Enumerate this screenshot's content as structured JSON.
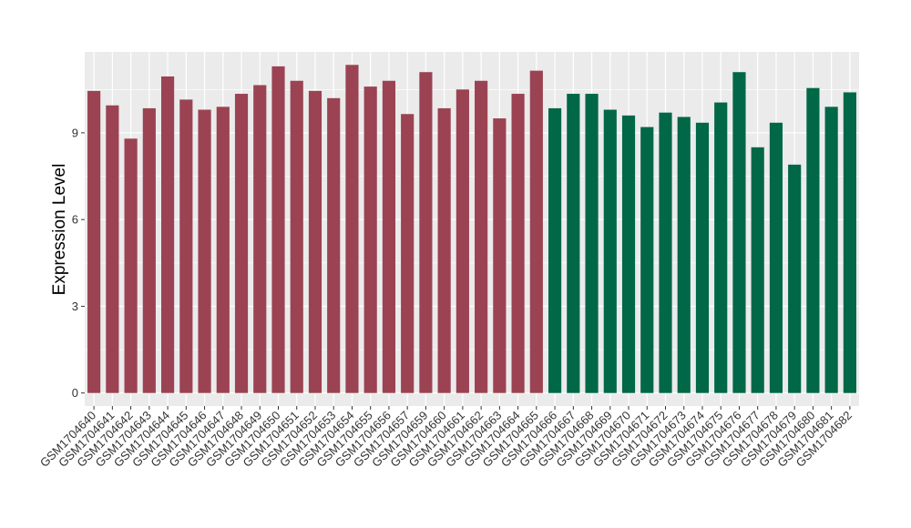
{
  "chart_data": {
    "type": "bar",
    "title": "",
    "xlabel": "",
    "ylabel": "Expression Level",
    "ylim": [
      -0.45,
      11.8
    ],
    "yticks": [
      0,
      3,
      6,
      9
    ],
    "grid": true,
    "legend": "none",
    "categories": [
      "GSM1704640",
      "GSM1704641",
      "GSM1704642",
      "GSM1704643",
      "GSM1704644",
      "GSM1704645",
      "GSM1704646",
      "GSM1704647",
      "GSM1704648",
      "GSM1704649",
      "GSM1704650",
      "GSM1704651",
      "GSM1704652",
      "GSM1704653",
      "GSM1704654",
      "GSM1704655",
      "GSM1704656",
      "GSM1704657",
      "GSM1704659",
      "GSM1704660",
      "GSM1704661",
      "GSM1704662",
      "GSM1704663",
      "GSM1704664",
      "GSM1704665",
      "GSM1704666",
      "GSM1704667",
      "GSM1704668",
      "GSM1704669",
      "GSM1704670",
      "GSM1704671",
      "GSM1704672",
      "GSM1704673",
      "GSM1704674",
      "GSM1704675",
      "GSM1704676",
      "GSM1704677",
      "GSM1704678",
      "GSM1704679",
      "GSM1704680",
      "GSM1704681",
      "GSM1704682"
    ],
    "values": [
      10.45,
      9.95,
      8.8,
      9.85,
      10.95,
      10.15,
      9.8,
      9.9,
      10.35,
      10.65,
      11.3,
      10.8,
      10.45,
      10.2,
      11.35,
      10.6,
      10.8,
      9.65,
      11.1,
      9.85,
      10.5,
      10.8,
      9.5,
      10.35,
      11.15,
      9.85,
      10.35,
      10.35,
      9.8,
      9.6,
      9.2,
      9.7,
      9.55,
      9.35,
      10.05,
      11.1,
      8.5,
      9.35,
      7.9,
      10.55,
      9.9,
      10.4
    ],
    "groups": [
      0,
      0,
      0,
      0,
      0,
      0,
      0,
      0,
      0,
      0,
      0,
      0,
      0,
      0,
      0,
      0,
      0,
      0,
      0,
      0,
      0,
      0,
      0,
      0,
      0,
      1,
      1,
      1,
      1,
      1,
      1,
      1,
      1,
      1,
      1,
      1,
      1,
      1,
      1,
      1,
      1,
      1
    ],
    "colors": [
      "#9b4352",
      "#006747"
    ],
    "panel_bg": "#ebebeb",
    "grid_color": "#ffffff"
  }
}
